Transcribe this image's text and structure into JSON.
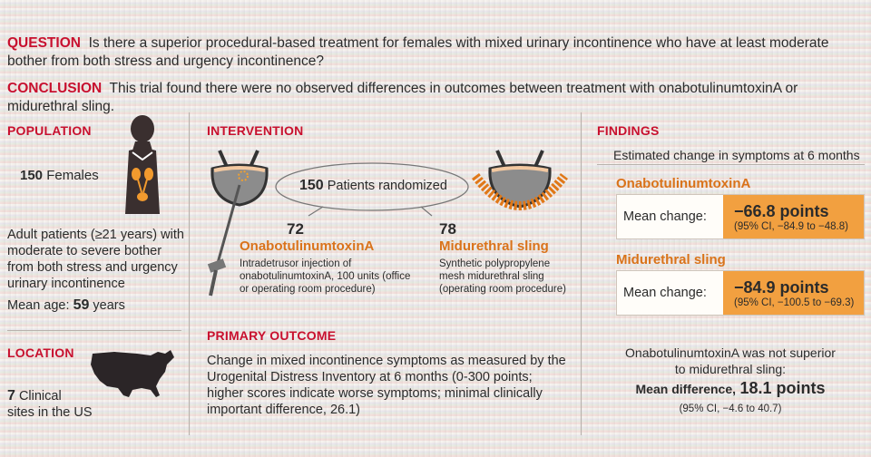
{
  "question": {
    "label": "QUESTION",
    "text": "Is there a superior procedural-based treatment for females with mixed urinary incontinence who have at least moderate bother from both stress and urgency incontinence?"
  },
  "conclusion": {
    "label": "CONCLUSION",
    "text": "This trial found there were no observed differences in outcomes between treatment with onabotulinumtoxinA or midurethral sling."
  },
  "population": {
    "heading": "POPULATION",
    "count": "150",
    "count_label": "Females",
    "description": "Adult patients (≥21 years) with moderate to severe bother from both stress and urgency urinary incontinence",
    "mean_age_label": "Mean age:",
    "mean_age_value": "59",
    "mean_age_unit": "years"
  },
  "location": {
    "heading": "LOCATION",
    "count": "7",
    "text1": "Clinical",
    "text2": "sites in the US"
  },
  "intervention": {
    "heading": "INTERVENTION",
    "randomized_count": "150",
    "randomized_label": "Patients randomized",
    "arm1": {
      "n": "72",
      "name": "OnabotulinumtoxinA",
      "desc": "Intradetrusor injection of onabotulinumtoxinA, 100 units (office or operating room procedure)"
    },
    "arm2": {
      "n": "78",
      "name": "Midurethral sling",
      "desc": "Synthetic polypropylene mesh midurethral sling (operating room procedure)"
    }
  },
  "primary_outcome": {
    "heading": "PRIMARY OUTCOME",
    "text": "Change in mixed incontinence symptoms as measured by the Urogenital Distress Inventory at 6 months (0-300 points; higher scores indicate worse symptoms; minimal clinically important difference, 26.1)"
  },
  "findings": {
    "heading": "FINDINGS",
    "subtitle": "Estimated change in symptoms at 6 months",
    "groups": [
      {
        "name": "OnabotulinumtoxinA",
        "label": "Mean change:",
        "value": "−66.8 points",
        "ci": "(95% CI, −84.9 to −48.8)"
      },
      {
        "name": "Midurethral sling",
        "label": "Mean change:",
        "value": "−84.9 points",
        "ci": "(95% CI, −100.5 to −69.3)"
      }
    ],
    "summary_line1": "OnabotulinumtoxinA was not superior",
    "summary_line2": "to midurethral sling:",
    "diff_label": "Mean difference,",
    "diff_value": "18.1 points",
    "diff_ci": "(95% CI, −4.6 to 40.7)"
  },
  "colors": {
    "accent_red": "#c8102e",
    "accent_orange": "#d9731a",
    "box_fill": "#f2a040"
  }
}
